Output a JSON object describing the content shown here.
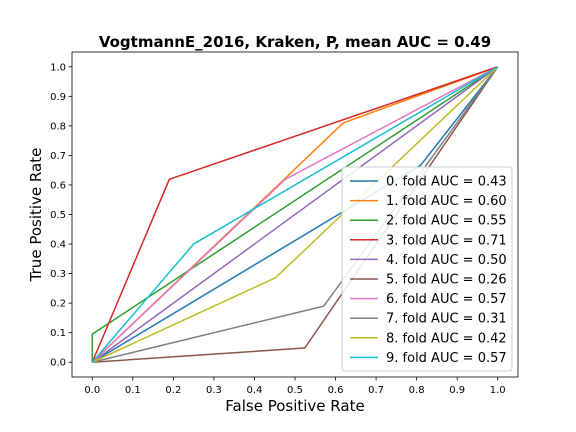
{
  "chart_data": {
    "type": "line",
    "title": "VogtmannE_2016, Kraken, P, mean AUC =  0.49",
    "xlabel": "False Positive Rate",
    "ylabel": "True Positive Rate",
    "xlim": [
      -0.05,
      1.05
    ],
    "ylim": [
      -0.05,
      1.05
    ],
    "xticks": [
      "0.0",
      "0.1",
      "0.2",
      "0.3",
      "0.4",
      "0.5",
      "0.6",
      "0.7",
      "0.8",
      "0.9",
      "1.0"
    ],
    "yticks": [
      "0.0",
      "0.1",
      "0.2",
      "0.3",
      "0.4",
      "0.5",
      "0.6",
      "0.7",
      "0.8",
      "0.9",
      "1.0"
    ],
    "grid": false,
    "legend_position": "lower-right",
    "series": [
      {
        "name": "0. fold AUC = 0.43",
        "color": "#1f77b4",
        "x": [
          0.0,
          0.81,
          1.0
        ],
        "y": [
          0.0,
          0.667,
          1.0
        ]
      },
      {
        "name": "1. fold AUC = 0.60",
        "color": "#ff7f0e",
        "x": [
          0.0,
          0.619,
          1.0
        ],
        "y": [
          0.0,
          0.81,
          1.0
        ]
      },
      {
        "name": "2. fold AUC = 0.55",
        "color": "#2ca02c",
        "x": [
          0.0,
          0.0,
          1.0
        ],
        "y": [
          0.0,
          0.095,
          1.0
        ]
      },
      {
        "name": "3. fold AUC = 0.71",
        "color": "#d62728",
        "x": [
          0.0,
          0.19,
          1.0
        ],
        "y": [
          0.0,
          0.619,
          1.0
        ]
      },
      {
        "name": "4. fold AUC = 0.50",
        "color": "#9467bd",
        "x": [
          0.0,
          1.0
        ],
        "y": [
          0.0,
          1.0
        ]
      },
      {
        "name": "5. fold AUC = 0.26",
        "color": "#8c564b",
        "x": [
          0.0,
          0.524,
          1.0
        ],
        "y": [
          0.0,
          0.048,
          1.0
        ]
      },
      {
        "name": "6. fold AUC = 0.57",
        "color": "#e377c2",
        "x": [
          0.0,
          0.476,
          1.0
        ],
        "y": [
          0.0,
          0.619,
          1.0
        ]
      },
      {
        "name": "7. fold AUC = 0.31",
        "color": "#7f7f7f",
        "x": [
          0.0,
          0.571,
          1.0
        ],
        "y": [
          0.0,
          0.19,
          1.0
        ]
      },
      {
        "name": "8. fold AUC = 0.42",
        "color": "#bcbd22",
        "x": [
          0.0,
          0.452,
          1.0
        ],
        "y": [
          0.0,
          0.286,
          1.0
        ]
      },
      {
        "name": "9. fold AUC = 0.57",
        "color": "#17becf",
        "x": [
          0.0,
          0.25,
          1.0
        ],
        "y": [
          0.0,
          0.4,
          1.0
        ]
      }
    ]
  }
}
